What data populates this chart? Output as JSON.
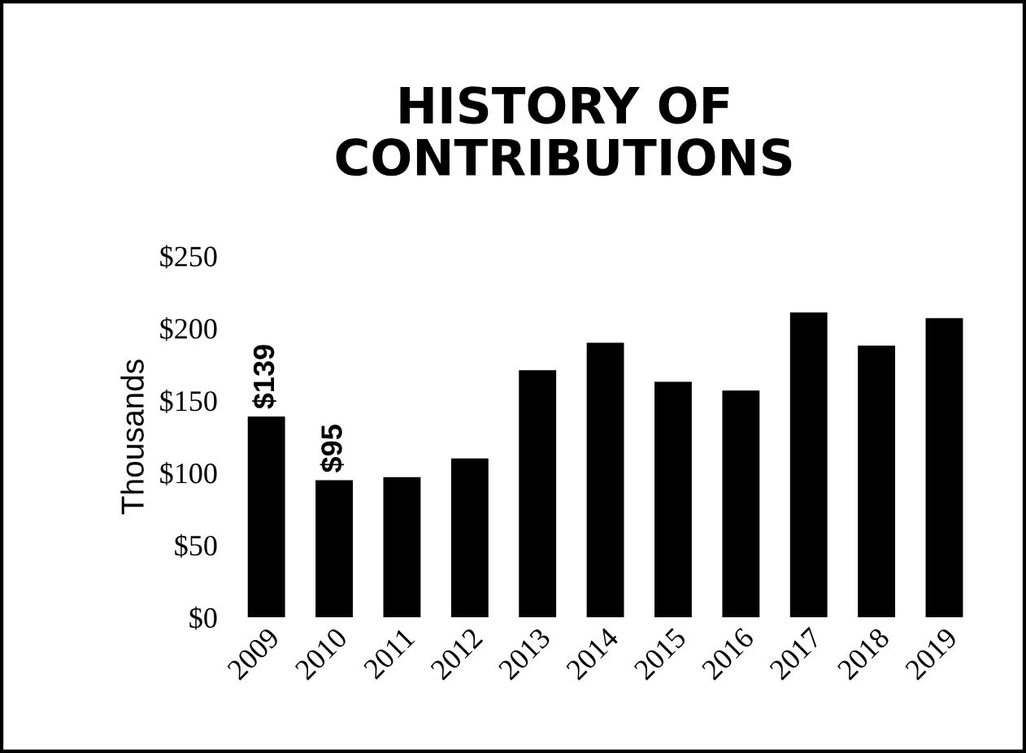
{
  "chart_data": {
    "type": "bar",
    "title": "HISTORY OF\nCONTRIBUTIONS",
    "ylabel": "Thousands",
    "categories": [
      "2009",
      "2010",
      "2011",
      "2012",
      "2013",
      "2014",
      "2015",
      "2016",
      "2017",
      "2018",
      "2019"
    ],
    "values": [
      139,
      95,
      97,
      110,
      171,
      190,
      163,
      157,
      211,
      188,
      207
    ],
    "value_labels": [
      "$139",
      "$95",
      null,
      null,
      null,
      null,
      null,
      null,
      null,
      null,
      null
    ],
    "color": "#000000",
    "ylim": [
      0,
      250
    ],
    "yticks": [
      {
        "value": 0,
        "label": "$0"
      },
      {
        "value": 50,
        "label": "$50"
      },
      {
        "value": 100,
        "label": "$100"
      },
      {
        "value": 150,
        "label": "$150"
      },
      {
        "value": 200,
        "label": "$200"
      },
      {
        "value": 250,
        "label": "$250"
      }
    ],
    "grid": false,
    "legend": false
  }
}
